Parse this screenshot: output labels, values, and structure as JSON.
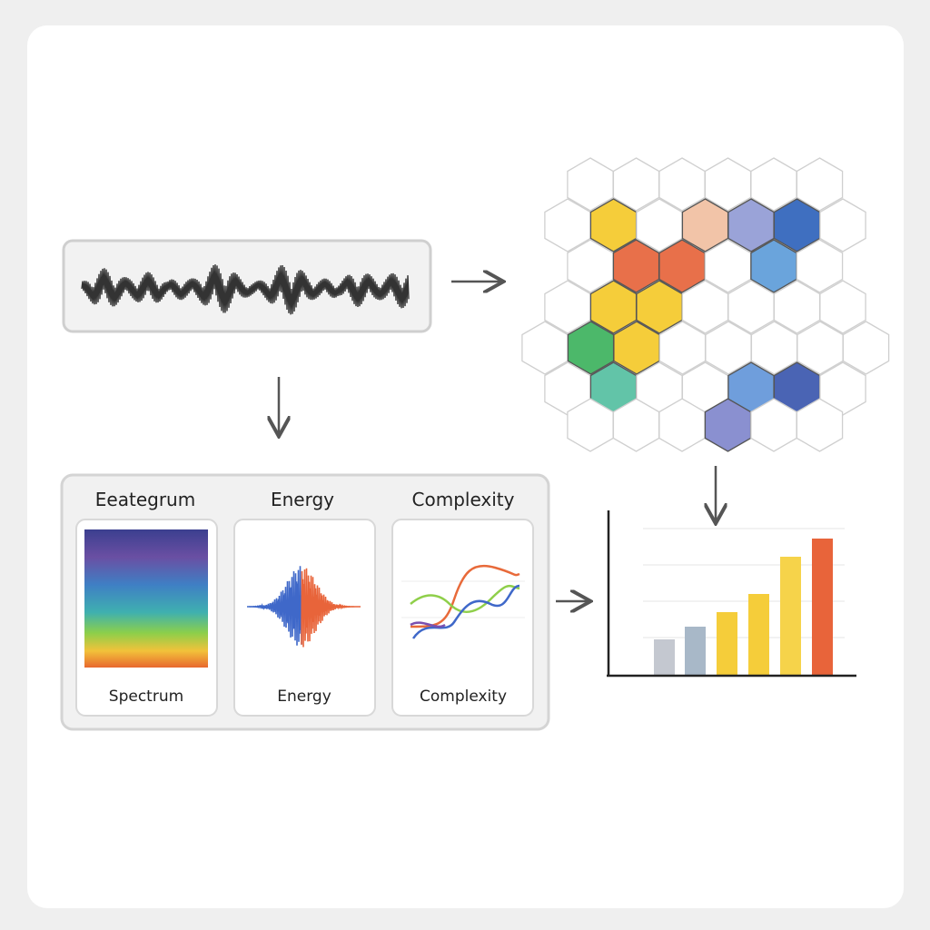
{
  "panel": {
    "headers": [
      "Eeategrum",
      "Energy",
      "Complexity"
    ],
    "cards": [
      {
        "label": "Spectrum"
      },
      {
        "label": "Energy"
      },
      {
        "label": "Complexity"
      }
    ]
  }
}
